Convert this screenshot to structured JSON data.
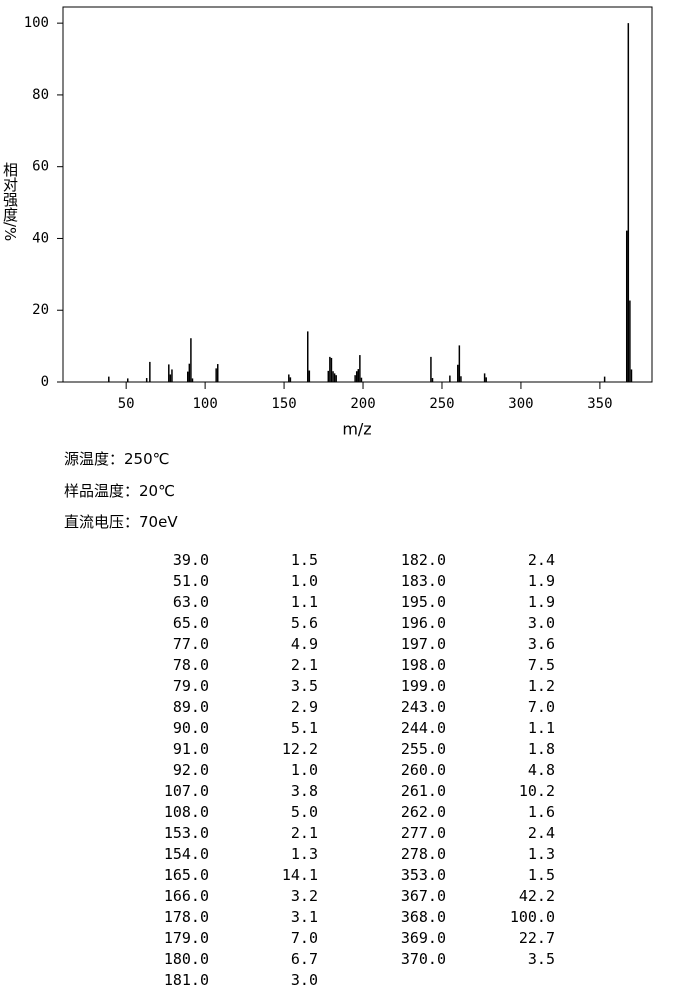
{
  "chart_data": {
    "type": "bar",
    "x_axis_label": "m/z",
    "y_axis_label": "相对强度/%",
    "xlim": [
      10,
      383
    ],
    "xticks": [
      50,
      100,
      150,
      200,
      250,
      300,
      350
    ],
    "ylim": [
      0,
      104.5
    ],
    "yticks": [
      0,
      20,
      40,
      60,
      80,
      100
    ],
    "color": "#000000",
    "x": [
      39,
      51,
      63,
      65,
      77,
      78,
      79,
      89,
      90,
      91,
      92,
      107,
      108,
      153,
      154,
      165,
      166,
      178,
      179,
      180,
      181,
      182,
      183,
      195,
      196,
      197,
      198,
      199,
      243,
      244,
      255,
      260,
      261,
      262,
      277,
      278,
      353,
      367,
      368,
      369,
      370
    ],
    "x_labels": [
      "39.0",
      "51.0",
      "63.0",
      "65.0",
      "77.0",
      "78.0",
      "79.0",
      "89.0",
      "90.0",
      "91.0",
      "92.0",
      "107.0",
      "108.0",
      "153.0",
      "154.0",
      "165.0",
      "166.0",
      "178.0",
      "179.0",
      "180.0",
      "181.0",
      "182.0",
      "183.0",
      "195.0",
      "196.0",
      "197.0",
      "198.0",
      "199.0",
      "243.0",
      "244.0",
      "255.0",
      "260.0",
      "261.0",
      "262.0",
      "277.0",
      "278.0",
      "353.0",
      "367.0",
      "368.0",
      "369.0",
      "370.0"
    ],
    "values": [
      1.5,
      1.0,
      1.1,
      5.6,
      4.9,
      2.1,
      3.5,
      2.9,
      5.1,
      12.2,
      1.0,
      3.8,
      5.0,
      2.1,
      1.3,
      14.1,
      3.2,
      3.1,
      7.0,
      6.7,
      3.0,
      2.4,
      1.9,
      1.9,
      3.0,
      3.6,
      7.5,
      1.2,
      7.0,
      1.1,
      1.8,
      4.8,
      10.2,
      1.6,
      2.4,
      1.3,
      1.5,
      42.2,
      100.0,
      22.7,
      3.5
    ],
    "value_labels": [
      "1.5",
      "1.0",
      "1.1",
      "5.6",
      "4.9",
      "2.1",
      "3.5",
      "2.9",
      "5.1",
      "12.2",
      "1.0",
      "3.8",
      "5.0",
      "2.1",
      "1.3",
      "14.1",
      "3.2",
      "3.1",
      "7.0",
      "6.7",
      "3.0",
      "2.4",
      "1.9",
      "1.9",
      "3.0",
      "3.6",
      "7.5",
      "1.2",
      "7.0",
      "1.1",
      "1.8",
      "4.8",
      "10.2",
      "1.6",
      "2.4",
      "1.3",
      "1.5",
      "42.2",
      "100.0",
      "22.7",
      "3.5"
    ]
  },
  "conditions": [
    "源温度：250℃",
    "样品温度：20℃",
    "直流电压：70eV"
  ]
}
